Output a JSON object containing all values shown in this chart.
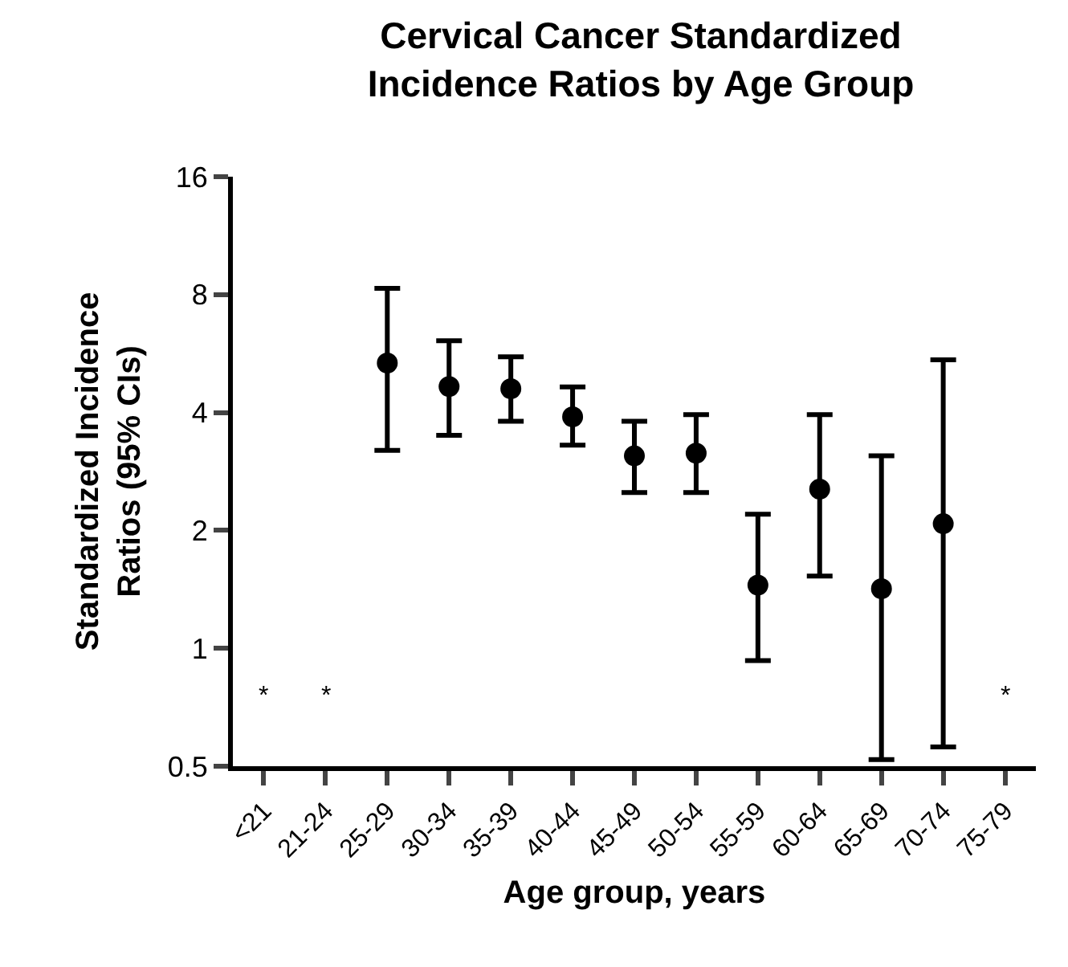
{
  "chart_data": {
    "type": "scatter",
    "title": "Cervical Cancer Standardized\nIncidence Ratios by Age Group",
    "xlabel": "Age group, years",
    "ylabel": "Standardized Incidence\nRatios (95% CIs)",
    "categories": [
      "<21",
      "21-24",
      "25-29",
      "30-34",
      "35-39",
      "40-44",
      "45-49",
      "50-54",
      "55-59",
      "60-64",
      "65-69",
      "70-74",
      "75-79"
    ],
    "series": [
      {
        "color": "#000000",
        "values": [
          null,
          null,
          5.35,
          4.66,
          4.6,
          3.9,
          3.1,
          3.15,
          1.45,
          2.55,
          1.42,
          2.08,
          null
        ],
        "errors": [
          null,
          null,
          [
            3.2,
            8.3
          ],
          [
            3.5,
            6.1
          ],
          [
            3.8,
            5.55
          ],
          [
            3.3,
            4.65
          ],
          [
            2.5,
            3.8
          ],
          [
            2.5,
            3.95
          ],
          [
            0.93,
            2.2
          ],
          [
            1.53,
            3.95
          ],
          [
            0.52,
            3.1
          ],
          [
            0.56,
            5.45
          ],
          null
        ]
      }
    ],
    "annotations": [
      "*",
      "*",
      "*"
    ],
    "log": "y",
    "ylim": [
      0.5,
      16
    ],
    "yticks": [
      0.5,
      1,
      2,
      4,
      8,
      16
    ],
    "grid": false,
    "marker": "circle"
  }
}
